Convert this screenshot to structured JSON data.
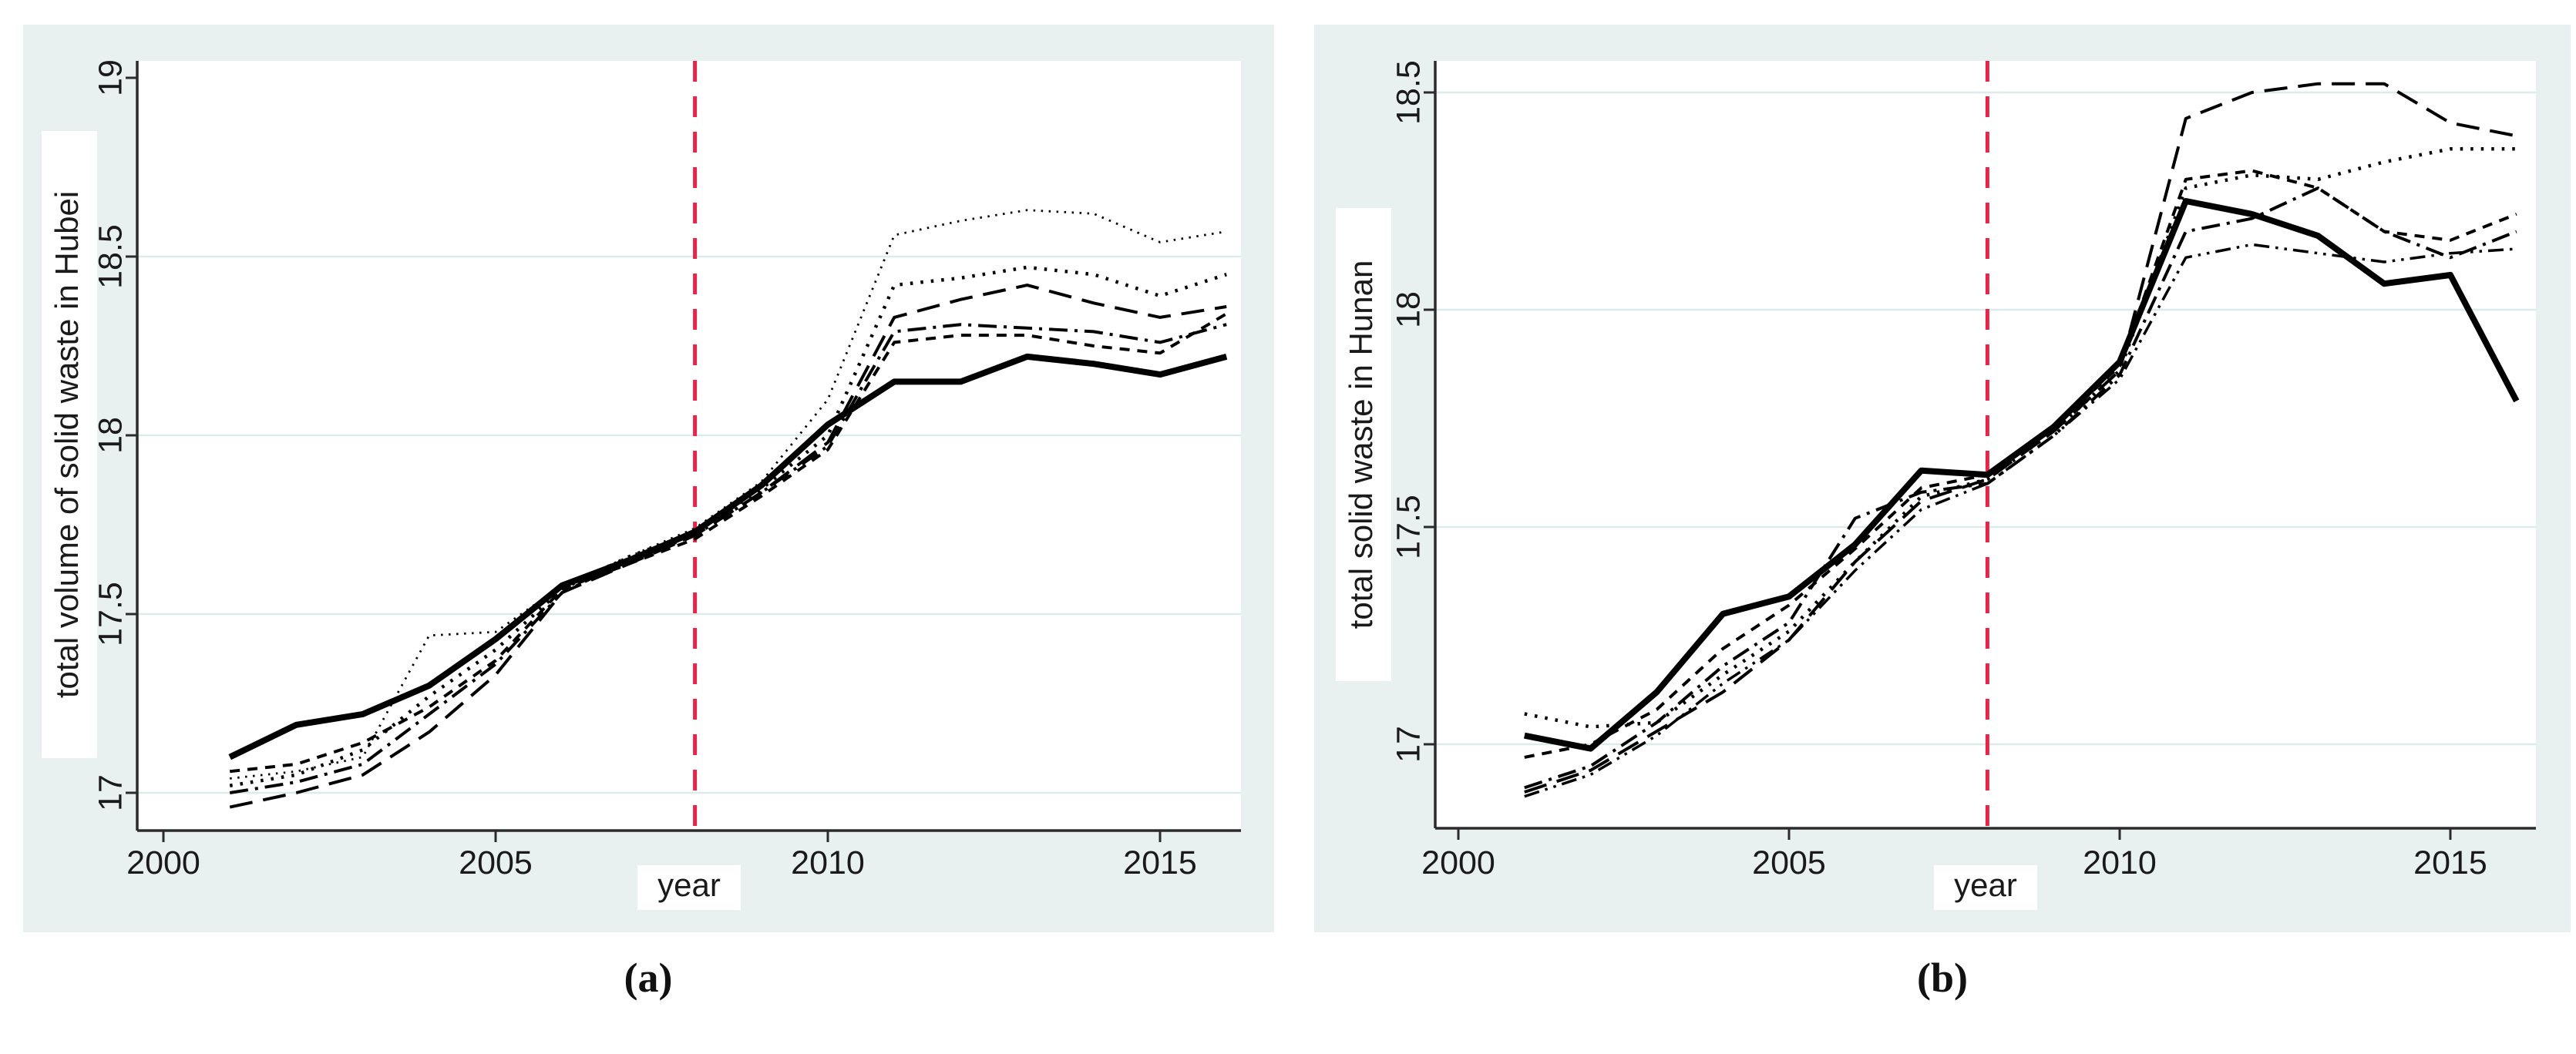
{
  "page": {
    "background": "#ffffff"
  },
  "colors": {
    "panel_background": "#e9f1f0",
    "plot_background": "#ffffff",
    "gridline": "#dcebe9",
    "axis": "#2b2b2b",
    "series_color": "#000000",
    "treatment_line": "#e8244a",
    "label_background": "#ffffff",
    "text": "#111111"
  },
  "chart_data": [
    {
      "id": "a",
      "type": "line",
      "caption": "(a)",
      "ylabel": "total volume of solid waste in Hubei",
      "xlabel": "year",
      "yticks": [
        19,
        18.5,
        18,
        17.5,
        17
      ],
      "grid_yticks": [
        18.5,
        18,
        17.5,
        17
      ],
      "xticks": [
        2000,
        2005,
        2010,
        2015
      ],
      "ylim": [
        16.9,
        19.05
      ],
      "xlim": [
        1999.6,
        2016.4
      ],
      "grid": true,
      "legend": "none",
      "treatment_year": 2008,
      "x": [
        2001,
        2002,
        2003,
        2004,
        2005,
        2006,
        2007,
        2008,
        2009,
        2010,
        2011,
        2012,
        2013,
        2014,
        2015,
        2016
      ],
      "series": [
        {
          "name": "Hubei-actual-thick-solid",
          "style": "solid",
          "values": [
            17.1,
            17.19,
            17.22,
            17.3,
            17.43,
            17.58,
            17.65,
            17.73,
            17.86,
            18.03,
            18.15,
            18.15,
            18.22,
            18.2,
            18.17,
            18.22
          ]
        },
        {
          "name": "comparison-fine-dotted",
          "style": "fine-dot",
          "values": [
            17.04,
            17.06,
            17.1,
            17.44,
            17.45,
            17.58,
            17.66,
            17.74,
            17.87,
            18.1,
            18.56,
            18.6,
            18.63,
            18.62,
            18.54,
            18.57
          ]
        },
        {
          "name": "comparison-dotted",
          "style": "dotted",
          "values": [
            17.02,
            17.05,
            17.12,
            17.27,
            17.4,
            17.57,
            17.66,
            17.73,
            17.85,
            18.0,
            18.42,
            18.44,
            18.47,
            18.45,
            18.39,
            18.45
          ]
        },
        {
          "name": "comparison-long-dash",
          "style": "long-dash",
          "values": [
            16.96,
            17.0,
            17.05,
            17.17,
            17.33,
            17.56,
            17.64,
            17.72,
            17.84,
            17.98,
            18.33,
            18.38,
            18.42,
            18.37,
            18.33,
            18.36
          ]
        },
        {
          "name": "comparison-dash-dot",
          "style": "dash-dot",
          "values": [
            17.0,
            17.03,
            17.08,
            17.22,
            17.36,
            17.56,
            17.65,
            17.72,
            17.84,
            17.97,
            18.29,
            18.31,
            18.3,
            18.29,
            18.26,
            18.31
          ]
        },
        {
          "name": "comparison-short-dash",
          "style": "short-dash",
          "values": [
            17.06,
            17.08,
            17.14,
            17.24,
            17.37,
            17.57,
            17.64,
            17.71,
            17.83,
            17.96,
            18.26,
            18.28,
            18.28,
            18.25,
            18.23,
            18.34
          ]
        }
      ]
    },
    {
      "id": "b",
      "type": "line",
      "caption": "(b)",
      "ylabel": "total solid waste in Hunan",
      "xlabel": "year",
      "yticks": [
        18.5,
        18,
        17.5,
        17
      ],
      "grid_yticks": [
        18.5,
        18,
        17.5,
        17
      ],
      "xticks": [
        2000,
        2005,
        2010,
        2015
      ],
      "ylim": [
        16.8,
        18.55
      ],
      "xlim": [
        1999.6,
        2016.4
      ],
      "grid": true,
      "legend": "none",
      "treatment_year": 2008,
      "x": [
        2001,
        2002,
        2003,
        2004,
        2005,
        2006,
        2007,
        2008,
        2009,
        2010,
        2011,
        2012,
        2013,
        2014,
        2015,
        2016
      ],
      "series": [
        {
          "name": "Hunan-actual-thick-solid",
          "style": "solid",
          "values": [
            17.02,
            16.99,
            17.12,
            17.3,
            17.34,
            17.46,
            17.63,
            17.62,
            17.73,
            17.88,
            18.25,
            18.22,
            18.17,
            18.06,
            18.08,
            17.79
          ]
        },
        {
          "name": "comparison-long-dash",
          "style": "long-dash",
          "values": [
            16.89,
            16.94,
            17.03,
            17.12,
            17.24,
            17.42,
            17.56,
            17.61,
            17.72,
            17.86,
            18.44,
            18.5,
            18.52,
            18.52,
            18.43,
            18.4
          ]
        },
        {
          "name": "comparison-dotted",
          "style": "dotted",
          "values": [
            17.07,
            17.04,
            17.05,
            17.16,
            17.26,
            17.42,
            17.57,
            17.61,
            17.72,
            17.86,
            18.28,
            18.31,
            18.3,
            18.34,
            18.37,
            18.37
          ]
        },
        {
          "name": "comparison-short-dash",
          "style": "short-dash",
          "values": [
            16.97,
            17.0,
            17.08,
            17.22,
            17.32,
            17.45,
            17.59,
            17.62,
            17.73,
            17.87,
            18.3,
            18.32,
            18.28,
            18.18,
            18.16,
            18.22
          ]
        },
        {
          "name": "comparison-dash-dot",
          "style": "dash-dot",
          "values": [
            16.9,
            16.95,
            17.05,
            17.18,
            17.28,
            17.52,
            17.58,
            17.6,
            17.71,
            17.85,
            18.18,
            18.21,
            18.28,
            18.18,
            18.12,
            18.18
          ]
        },
        {
          "name": "comparison-dash-dot-dot",
          "style": "dash-dot-dot",
          "values": [
            16.88,
            16.93,
            17.02,
            17.14,
            17.24,
            17.4,
            17.54,
            17.6,
            17.71,
            17.84,
            18.12,
            18.15,
            18.13,
            18.11,
            18.13,
            18.14
          ]
        }
      ]
    }
  ]
}
